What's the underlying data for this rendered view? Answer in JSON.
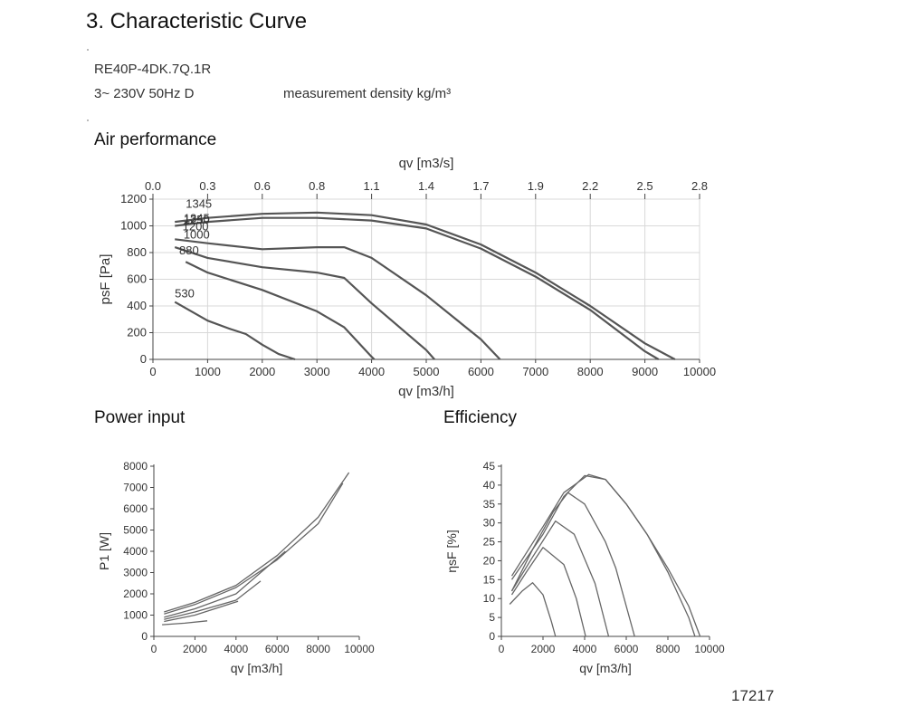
{
  "header": {
    "title": "3.  Characteristic Curve",
    "model": "RE40P-4DK.7Q.1R",
    "supply": "3~ 230V 50Hz D",
    "density_label": "measurement density  kg/m³"
  },
  "sections": {
    "air": "Air performance",
    "power": "Power input",
    "efficiency": "Efficiency"
  },
  "footer": {
    "id": "17217"
  },
  "chart_data": [
    {
      "type": "line",
      "title": "Air performance",
      "xlabel": "qv [m3/h]",
      "ylabel": "psF [Pa]",
      "x2label": "qv [m3/s]",
      "xlim": [
        0,
        10000
      ],
      "ylim": [
        0,
        1200
      ],
      "xticks": [
        0,
        1000,
        2000,
        3000,
        4000,
        5000,
        6000,
        7000,
        8000,
        9000,
        10000
      ],
      "yticks": [
        0,
        200,
        400,
        600,
        800,
        1000,
        1200
      ],
      "x2ticks": [
        "0.0",
        "0.3",
        "0.6",
        "0.8",
        "1.1",
        "1.4",
        "1.7",
        "1.9",
        "2.2",
        "2.5",
        "2.8"
      ],
      "grid": true,
      "curve_labels": [
        {
          "text": "1345",
          "at": [
            600,
            1170
          ]
        },
        {
          "text": "1345",
          "at": [
            560,
            1060
          ]
        },
        {
          "text": "1250",
          "at": [
            560,
            1050
          ]
        },
        {
          "text": "1200",
          "at": [
            540,
            1000
          ]
        },
        {
          "text": "1000",
          "at": [
            560,
            940
          ]
        },
        {
          "text": "880",
          "at": [
            480,
            820
          ]
        },
        {
          "text": "530",
          "at": [
            400,
            500
          ]
        }
      ],
      "series": [
        {
          "x": [
            400,
            1000,
            2000,
            3000,
            4000,
            5000,
            6000,
            7000,
            8000,
            9000,
            9550
          ],
          "y": [
            1030,
            1060,
            1090,
            1100,
            1080,
            1010,
            860,
            650,
            400,
            120,
            0
          ]
        },
        {
          "x": [
            400,
            1000,
            2000,
            3000,
            4000,
            5000,
            6000,
            7000,
            8000,
            9000,
            9250
          ],
          "y": [
            1000,
            1030,
            1060,
            1060,
            1040,
            980,
            830,
            620,
            370,
            60,
            0
          ]
        },
        {
          "x": [
            400,
            1000,
            2000,
            3000,
            3500,
            4000,
            5000,
            6000,
            6350
          ],
          "y": [
            900,
            870,
            825,
            840,
            840,
            760,
            480,
            150,
            0
          ]
        },
        {
          "x": [
            400,
            1000,
            2000,
            3000,
            3500,
            4000,
            5000,
            5150
          ],
          "y": [
            840,
            760,
            690,
            650,
            610,
            420,
            70,
            0
          ]
        },
        {
          "x": [
            600,
            1000,
            2000,
            3000,
            3500,
            4000,
            4050
          ],
          "y": [
            730,
            650,
            520,
            360,
            240,
            20,
            0
          ]
        },
        {
          "x": [
            400,
            1000,
            1400,
            1700,
            2000,
            2300,
            2600
          ],
          "y": [
            430,
            290,
            230,
            190,
            110,
            40,
            0
          ]
        }
      ]
    },
    {
      "type": "line",
      "title": "Power input",
      "xlabel": "qv [m3/h]",
      "ylabel": "P1 [W]",
      "xlim": [
        0,
        10000
      ],
      "ylim": [
        0,
        8000
      ],
      "xticks": [
        0,
        2000,
        4000,
        6000,
        8000,
        10000
      ],
      "yticks": [
        0,
        1000,
        2000,
        3000,
        4000,
        5000,
        6000,
        7000,
        8000
      ],
      "grid": false,
      "series": [
        {
          "x": [
            500,
            2000,
            4000,
            6000,
            8000,
            9500
          ],
          "y": [
            1150,
            1600,
            2400,
            3800,
            5600,
            7700
          ]
        },
        {
          "x": [
            500,
            2000,
            4000,
            6000,
            8000,
            9200
          ],
          "y": [
            1050,
            1500,
            2300,
            3600,
            5300,
            7200
          ]
        },
        {
          "x": [
            500,
            2000,
            4000,
            6400
          ],
          "y": [
            900,
            1300,
            2000,
            4000
          ]
        },
        {
          "x": [
            500,
            2000,
            4000,
            5200
          ],
          "y": [
            800,
            1150,
            1700,
            2600
          ]
        },
        {
          "x": [
            500,
            2000,
            4100
          ],
          "y": [
            700,
            1000,
            1650
          ]
        },
        {
          "x": [
            400,
            1500,
            2600
          ],
          "y": [
            550,
            620,
            730
          ]
        }
      ]
    },
    {
      "type": "line",
      "title": "Efficiency",
      "xlabel": "qv [m3/h]",
      "ylabel": "ηsF [%]",
      "xlim": [
        0,
        10000
      ],
      "ylim": [
        0,
        45
      ],
      "xticks": [
        0,
        2000,
        4000,
        6000,
        8000,
        10000
      ],
      "yticks": [
        0,
        5,
        10,
        15,
        20,
        25,
        30,
        35,
        40,
        45
      ],
      "grid": false,
      "series": [
        {
          "x": [
            500,
            2000,
            3000,
            4200,
            5000,
            6000,
            7000,
            8000,
            9000,
            9550
          ],
          "y": [
            16,
            29,
            38,
            42.8,
            41.5,
            35,
            27,
            18,
            8,
            0
          ]
        },
        {
          "x": [
            500,
            2000,
            3000,
            4000,
            5000,
            6000,
            7000,
            8000,
            9000,
            9300
          ],
          "y": [
            15,
            27,
            37,
            42.5,
            41.5,
            35,
            27,
            17,
            5,
            0
          ]
        },
        {
          "x": [
            500,
            1500,
            2500,
            3200,
            4000,
            5000,
            5500,
            6400
          ],
          "y": [
            12,
            23,
            33,
            38,
            35,
            25,
            18,
            0
          ]
        },
        {
          "x": [
            500,
            1500,
            2600,
            3500,
            4500,
            5150
          ],
          "y": [
            12,
            21,
            30.5,
            27,
            14,
            0
          ]
        },
        {
          "x": [
            500,
            1200,
            2000,
            3000,
            3600,
            4050
          ],
          "y": [
            11,
            17,
            23.5,
            19,
            10,
            0
          ]
        },
        {
          "x": [
            400,
            1000,
            1500,
            2000,
            2400,
            2600
          ],
          "y": [
            8.5,
            12,
            14.2,
            11,
            4,
            0
          ]
        }
      ]
    }
  ]
}
